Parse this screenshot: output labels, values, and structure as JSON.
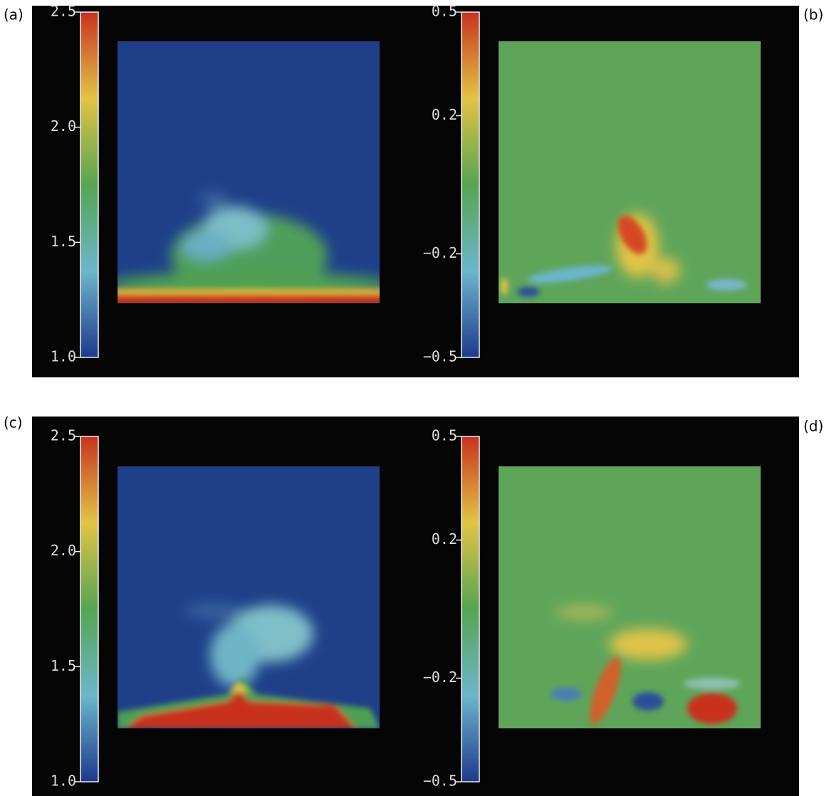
{
  "chart_data": [
    {
      "type": "heatmap",
      "label": "(a)",
      "clim": [
        1.0,
        2.5
      ],
      "colors": [
        "#1c3a8c",
        "#6cb6cc",
        "#55a552",
        "#e2c446",
        "#c8331f"
      ],
      "colorbar_ticks": [
        2.5,
        {
          "value": 2,
          "label": "2.0"
        },
        1.5,
        {
          "value": 1,
          "label": "1.0"
        }
      ]
    },
    {
      "type": "heatmap",
      "label": "(b)",
      "clim": [
        -0.5,
        0.5
      ],
      "colors": [
        "#1c3a8c",
        "#6cb6cc",
        "#55a552",
        "#e2c446",
        "#c8331f"
      ],
      "colorbar_ticks": [
        0.5,
        0.2,
        {
          "value": -0.2,
          "label": "−0.2"
        },
        {
          "value": -0.5,
          "label": "−0.5"
        }
      ]
    },
    {
      "type": "heatmap",
      "label": "(c)",
      "clim": [
        1.0,
        2.5
      ],
      "colors": [
        "#1c3a8c",
        "#6cb6cc",
        "#55a552",
        "#e2c446",
        "#c8331f"
      ],
      "colorbar_ticks": [
        2.5,
        {
          "value": 2,
          "label": "2.0"
        },
        1.5,
        {
          "value": 1,
          "label": "1.0"
        }
      ]
    },
    {
      "type": "heatmap",
      "label": "(d)",
      "clim": [
        -0.5,
        0.5
      ],
      "colors": [
        "#1c3a8c",
        "#6cb6cc",
        "#55a552",
        "#e2c446",
        "#c8331f"
      ],
      "colorbar_ticks": [
        0.5,
        0.2,
        {
          "value": -0.2,
          "label": "−0.2"
        },
        {
          "value": -0.5,
          "label": "−0.5"
        }
      ]
    }
  ]
}
